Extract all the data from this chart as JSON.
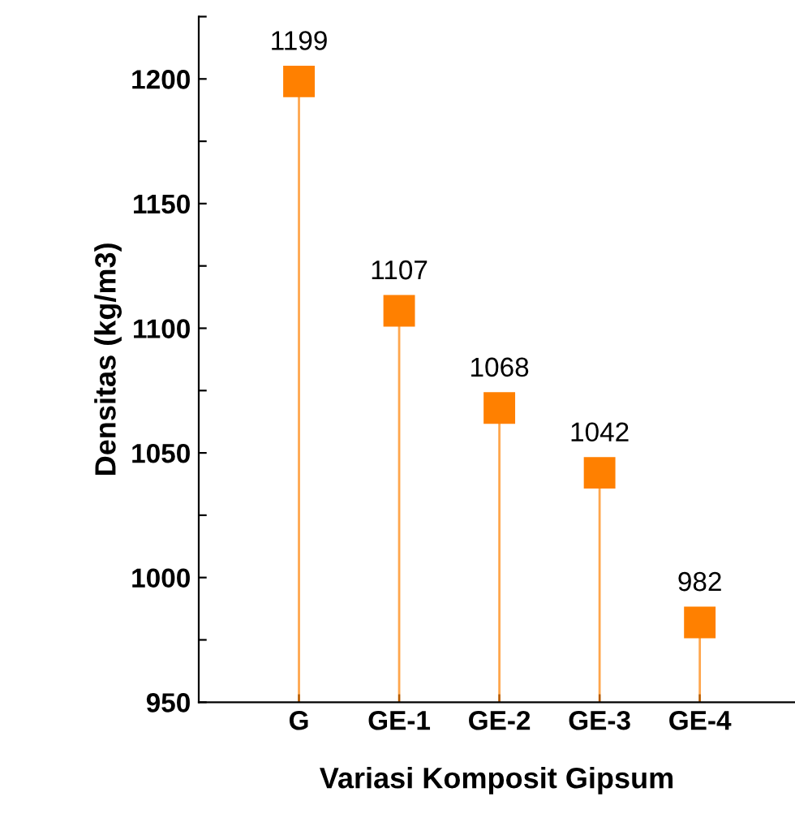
{
  "chart_data": {
    "type": "lollipop",
    "xlabel": "Variasi Komposit Gipsum",
    "ylabel": "Densitas (kg/m3)",
    "categories": [
      "G",
      "GE-1",
      "GE-2",
      "GE-3",
      "GE-4"
    ],
    "values": [
      1199,
      1107,
      1068,
      1042,
      982
    ],
    "color": "#ff8000",
    "marker": "square",
    "data_labels": true,
    "ylim": [
      950,
      1225
    ],
    "yticks": [
      950,
      {
        "value": 975,
        "label": null
      },
      1000,
      {
        "value": 1025,
        "label": null
      },
      1050,
      {
        "value": 1075,
        "label": null
      },
      1100,
      {
        "value": 1125,
        "label": null
      },
      1150,
      {
        "value": 1175,
        "label": null
      },
      1200,
      {
        "value": 1225,
        "label": null
      }
    ],
    "grid": false,
    "legend": false
  }
}
